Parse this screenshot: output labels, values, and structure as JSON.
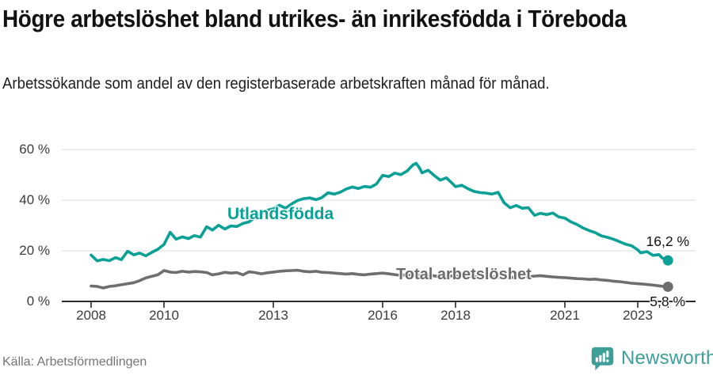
{
  "header": {
    "title": "Högre arbetslöshet bland utrikes- än inrikesfödda i Töreboda",
    "subtitle": "Arbetssökande som andel av den registerbaserade arbetskraften månad för månad."
  },
  "footer": {
    "source": "Källa: Arbetsförmedlingen",
    "brand": "Newsworthy"
  },
  "colors": {
    "accent_teal": "#0aa096",
    "series_gray": "#6e6e6e",
    "logo_teal": "#3e9f99",
    "axis": "#2b2b2b",
    "grid": "#dcdcdc",
    "tick_text": "#3b3b3b",
    "value_text": "#111111"
  },
  "chart_data": {
    "type": "line",
    "x_unit": "decimal_year",
    "xlim": [
      2008,
      2023.92
    ],
    "ylim": [
      0,
      60
    ],
    "grid": "horizontal",
    "legend_position": "inline-labels",
    "y_ticks": [
      {
        "value": 0,
        "label": "0 %"
      },
      {
        "value": 20,
        "label": "20 %"
      },
      {
        "value": 40,
        "label": "40 %"
      },
      {
        "value": 60,
        "label": "60 %"
      }
    ],
    "x_ticks": [
      {
        "value": 2008,
        "label": "2008"
      },
      {
        "value": 2010,
        "label": "2010"
      },
      {
        "value": 2013,
        "label": "2013"
      },
      {
        "value": 2016,
        "label": "2016"
      },
      {
        "value": 2018,
        "label": "2018"
      },
      {
        "value": 2021,
        "label": "2021"
      },
      {
        "value": 2023,
        "label": "2023"
      }
    ],
    "end_tick": 2023.83,
    "series": [
      {
        "name": "Utlandsfödda",
        "color": "#0aa096",
        "end_label": "16,2 %",
        "end_value": 16.2,
        "points": [
          [
            2008.0,
            18.3
          ],
          [
            2008.17,
            16.0
          ],
          [
            2008.33,
            16.6
          ],
          [
            2008.5,
            16.1
          ],
          [
            2008.67,
            17.3
          ],
          [
            2008.83,
            16.5
          ],
          [
            2009.0,
            19.8
          ],
          [
            2009.17,
            18.4
          ],
          [
            2009.33,
            19.1
          ],
          [
            2009.5,
            18.0
          ],
          [
            2009.67,
            19.4
          ],
          [
            2009.83,
            20.6
          ],
          [
            2010.0,
            22.5
          ],
          [
            2010.17,
            27.3
          ],
          [
            2010.33,
            24.6
          ],
          [
            2010.5,
            25.5
          ],
          [
            2010.67,
            24.8
          ],
          [
            2010.83,
            26.0
          ],
          [
            2011.0,
            25.4
          ],
          [
            2011.17,
            29.5
          ],
          [
            2011.33,
            28.2
          ],
          [
            2011.5,
            30.1
          ],
          [
            2011.67,
            28.6
          ],
          [
            2011.83,
            29.8
          ],
          [
            2012.0,
            29.6
          ],
          [
            2012.17,
            30.8
          ],
          [
            2012.33,
            31.4
          ],
          [
            2012.5,
            33.2
          ],
          [
            2012.67,
            34.8
          ],
          [
            2012.83,
            36.0
          ],
          [
            2013.0,
            36.6
          ],
          [
            2013.17,
            38.0
          ],
          [
            2013.33,
            36.8
          ],
          [
            2013.5,
            38.5
          ],
          [
            2013.67,
            39.9
          ],
          [
            2013.83,
            40.6
          ],
          [
            2014.0,
            40.9
          ],
          [
            2014.17,
            40.2
          ],
          [
            2014.33,
            41.0
          ],
          [
            2014.5,
            42.9
          ],
          [
            2014.67,
            42.4
          ],
          [
            2014.83,
            43.1
          ],
          [
            2015.0,
            44.4
          ],
          [
            2015.17,
            45.2
          ],
          [
            2015.33,
            44.6
          ],
          [
            2015.5,
            45.4
          ],
          [
            2015.67,
            45.1
          ],
          [
            2015.83,
            46.4
          ],
          [
            2016.0,
            49.8
          ],
          [
            2016.17,
            49.3
          ],
          [
            2016.33,
            50.7
          ],
          [
            2016.5,
            50.1
          ],
          [
            2016.67,
            51.5
          ],
          [
            2016.83,
            53.9
          ],
          [
            2016.92,
            54.6
          ],
          [
            2017.0,
            53.0
          ],
          [
            2017.08,
            50.8
          ],
          [
            2017.25,
            51.8
          ],
          [
            2017.42,
            49.7
          ],
          [
            2017.58,
            47.9
          ],
          [
            2017.75,
            48.8
          ],
          [
            2017.92,
            46.5
          ],
          [
            2018.0,
            45.3
          ],
          [
            2018.17,
            45.9
          ],
          [
            2018.33,
            44.6
          ],
          [
            2018.5,
            43.5
          ],
          [
            2018.67,
            43.0
          ],
          [
            2018.83,
            42.8
          ],
          [
            2019.0,
            42.4
          ],
          [
            2019.17,
            43.1
          ],
          [
            2019.33,
            39.0
          ],
          [
            2019.5,
            37.0
          ],
          [
            2019.67,
            37.9
          ],
          [
            2019.83,
            36.8
          ],
          [
            2020.0,
            37.0
          ],
          [
            2020.17,
            34.0
          ],
          [
            2020.33,
            34.8
          ],
          [
            2020.5,
            34.3
          ],
          [
            2020.67,
            34.9
          ],
          [
            2020.83,
            33.4
          ],
          [
            2021.0,
            32.9
          ],
          [
            2021.17,
            31.4
          ],
          [
            2021.33,
            30.4
          ],
          [
            2021.5,
            29.0
          ],
          [
            2021.67,
            28.0
          ],
          [
            2021.83,
            27.2
          ],
          [
            2022.0,
            25.9
          ],
          [
            2022.17,
            25.3
          ],
          [
            2022.33,
            24.6
          ],
          [
            2022.5,
            23.6
          ],
          [
            2022.67,
            22.6
          ],
          [
            2022.83,
            22.0
          ],
          [
            2023.0,
            20.4
          ],
          [
            2023.08,
            19.2
          ],
          [
            2023.25,
            19.7
          ],
          [
            2023.42,
            18.2
          ],
          [
            2023.58,
            18.5
          ],
          [
            2023.67,
            17.2
          ],
          [
            2023.83,
            16.2
          ]
        ]
      },
      {
        "name": "Total arbetslöshet",
        "color": "#6e6e6e",
        "end_label": "5,8 %",
        "end_value": 5.8,
        "points": [
          [
            2008.0,
            6.1
          ],
          [
            2008.17,
            5.9
          ],
          [
            2008.33,
            5.3
          ],
          [
            2008.5,
            5.9
          ],
          [
            2008.67,
            6.2
          ],
          [
            2008.83,
            6.6
          ],
          [
            2009.0,
            7.0
          ],
          [
            2009.17,
            7.4
          ],
          [
            2009.33,
            8.2
          ],
          [
            2009.5,
            9.3
          ],
          [
            2009.67,
            9.9
          ],
          [
            2009.83,
            10.5
          ],
          [
            2010.0,
            12.2
          ],
          [
            2010.17,
            11.6
          ],
          [
            2010.33,
            11.4
          ],
          [
            2010.5,
            11.9
          ],
          [
            2010.67,
            11.6
          ],
          [
            2010.83,
            11.8
          ],
          [
            2011.0,
            11.7
          ],
          [
            2011.17,
            11.4
          ],
          [
            2011.33,
            10.5
          ],
          [
            2011.5,
            10.9
          ],
          [
            2011.67,
            11.5
          ],
          [
            2011.83,
            11.2
          ],
          [
            2012.0,
            11.4
          ],
          [
            2012.17,
            10.5
          ],
          [
            2012.33,
            11.7
          ],
          [
            2012.5,
            11.4
          ],
          [
            2012.67,
            10.9
          ],
          [
            2012.83,
            11.3
          ],
          [
            2013.0,
            11.6
          ],
          [
            2013.17,
            11.9
          ],
          [
            2013.33,
            12.1
          ],
          [
            2013.5,
            12.2
          ],
          [
            2013.67,
            12.3
          ],
          [
            2013.83,
            11.9
          ],
          [
            2014.0,
            11.7
          ],
          [
            2014.17,
            11.9
          ],
          [
            2014.33,
            11.5
          ],
          [
            2014.5,
            11.4
          ],
          [
            2014.67,
            11.2
          ],
          [
            2014.83,
            11.0
          ],
          [
            2015.0,
            10.8
          ],
          [
            2015.17,
            11.0
          ],
          [
            2015.33,
            10.7
          ],
          [
            2015.5,
            10.5
          ],
          [
            2015.67,
            10.8
          ],
          [
            2015.83,
            11.0
          ],
          [
            2016.0,
            11.2
          ],
          [
            2016.17,
            10.9
          ],
          [
            2016.33,
            10.6
          ],
          [
            2016.5,
            10.3
          ],
          [
            2016.67,
            10.5
          ],
          [
            2016.83,
            10.2
          ],
          [
            2017.0,
            10.4
          ],
          [
            2017.17,
            10.1
          ],
          [
            2017.33,
            10.3
          ],
          [
            2017.5,
            9.9
          ],
          [
            2017.67,
            10.2
          ],
          [
            2017.83,
            10.0
          ],
          [
            2018.0,
            10.1
          ],
          [
            2018.17,
            9.8
          ],
          [
            2018.33,
            10.0
          ],
          [
            2018.5,
            9.7
          ],
          [
            2018.67,
            9.9
          ],
          [
            2018.83,
            9.6
          ],
          [
            2019.0,
            9.8
          ],
          [
            2019.17,
            9.5
          ],
          [
            2019.33,
            9.7
          ],
          [
            2019.5,
            9.4
          ],
          [
            2019.67,
            9.6
          ],
          [
            2019.83,
            9.8
          ],
          [
            2020.0,
            9.7
          ],
          [
            2020.17,
            10.0
          ],
          [
            2020.33,
            10.2
          ],
          [
            2020.5,
            9.9
          ],
          [
            2020.67,
            9.7
          ],
          [
            2020.83,
            9.5
          ],
          [
            2021.0,
            9.4
          ],
          [
            2021.17,
            9.2
          ],
          [
            2021.33,
            9.0
          ],
          [
            2021.5,
            8.9
          ],
          [
            2021.67,
            8.7
          ],
          [
            2021.83,
            8.8
          ],
          [
            2022.0,
            8.5
          ],
          [
            2022.17,
            8.3
          ],
          [
            2022.33,
            8.0
          ],
          [
            2022.5,
            7.8
          ],
          [
            2022.67,
            7.5
          ],
          [
            2022.83,
            7.2
          ],
          [
            2023.0,
            7.0
          ],
          [
            2023.17,
            6.8
          ],
          [
            2023.33,
            6.6
          ],
          [
            2023.5,
            6.3
          ],
          [
            2023.67,
            6.0
          ],
          [
            2023.83,
            5.8
          ]
        ]
      }
    ]
  }
}
